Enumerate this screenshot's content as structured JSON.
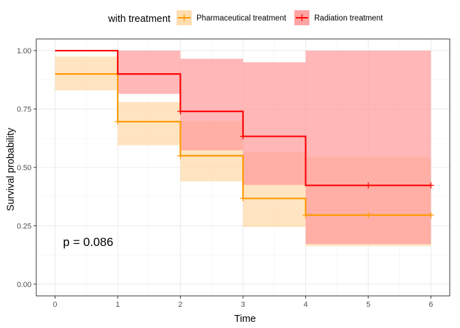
{
  "chart_data": {
    "type": "line",
    "subtype": "kaplan-meier survival curve with confidence bands",
    "title": "",
    "xlabel": "Time",
    "ylabel": "Survival probability",
    "xlim": [
      -0.3,
      6.3
    ],
    "ylim": [
      -0.05,
      1.05
    ],
    "x_ticks": [
      0,
      1,
      2,
      3,
      4,
      5,
      6
    ],
    "x_tick_labels": [
      "0",
      "1",
      "2",
      "3",
      "4",
      "5",
      "6"
    ],
    "y_ticks": [
      0,
      0.25,
      0.5,
      0.75,
      1.0
    ],
    "y_tick_labels": [
      "0.00",
      "0.25",
      "0.50",
      "0.75",
      "1.00"
    ],
    "grid": true,
    "legend": {
      "title": "with treatment",
      "placement": "top"
    },
    "annotation": "p = 0.086",
    "series": [
      {
        "name": "Pharmaceutical treatment",
        "color": "#FF9900",
        "band_color": "#FFD9A6",
        "steps": [
          {
            "x0": 0,
            "x1": 1,
            "y": 0.9,
            "lower": 0.83,
            "upper": 0.975
          },
          {
            "x0": 1,
            "x1": 2,
            "y": 0.696,
            "lower": 0.595,
            "upper": 0.78
          },
          {
            "x0": 2,
            "x1": 3,
            "y": 0.55,
            "lower": 0.44,
            "upper": 0.698
          },
          {
            "x0": 3,
            "x1": 4,
            "y": 0.367,
            "lower": 0.245,
            "upper": 0.565
          },
          {
            "x0": 4,
            "x1": 6,
            "y": 0.296,
            "lower": 0.163,
            "upper": 0.545
          }
        ],
        "censor_times": [
          1,
          2,
          3,
          4,
          5,
          6
        ],
        "censor_values": [
          0.696,
          0.55,
          0.367,
          0.296,
          0.296,
          0.296
        ]
      },
      {
        "name": "Radiation treatment",
        "color": "#FF0000",
        "band_color": "#FF9999",
        "steps": [
          {
            "x0": 0,
            "x1": 1,
            "y": 1.0,
            "lower": 1.0,
            "upper": 1.0
          },
          {
            "x0": 1,
            "x1": 2,
            "y": 0.9,
            "lower": 0.815,
            "upper": 1.0
          },
          {
            "x0": 2,
            "x1": 3,
            "y": 0.74,
            "lower": 0.573,
            "upper": 0.965
          },
          {
            "x0": 3,
            "x1": 4,
            "y": 0.633,
            "lower": 0.425,
            "upper": 0.95
          },
          {
            "x0": 4,
            "x1": 6,
            "y": 0.423,
            "lower": 0.172,
            "upper": 1.0
          }
        ],
        "censor_times": [
          2,
          3,
          5,
          6
        ],
        "censor_values": [
          0.74,
          0.633,
          0.423,
          0.423
        ]
      }
    ]
  }
}
